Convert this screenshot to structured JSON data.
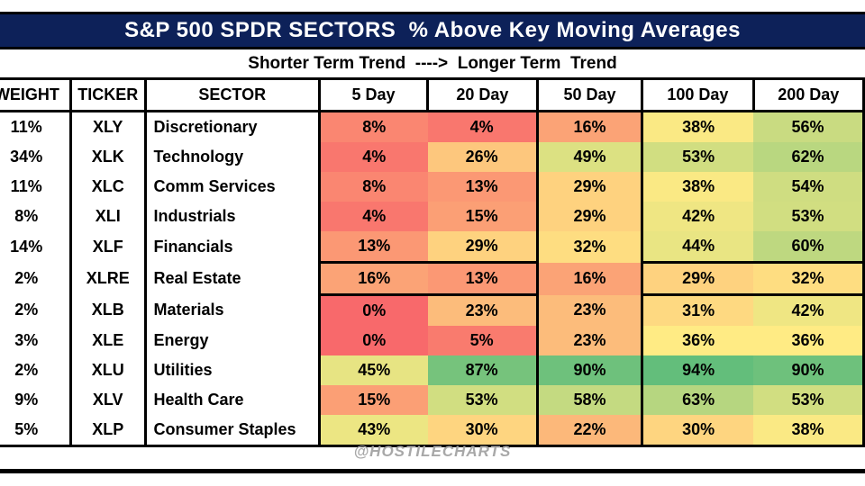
{
  "page": {
    "banner_color": "#0d2159",
    "banner_text_color": "#ffffff",
    "watermark": "@HOSTILECHARTS"
  },
  "chart_data": {
    "type": "heatmap",
    "title": "S&P 500 SPDR SECTORS  % Above Key Moving Averages",
    "subtitle": "Shorter Term Trend  ---->  Longer Term  Trend",
    "columns": [
      "WEIGHT",
      "TICKER",
      "SECTOR",
      "5 Day",
      "20 Day",
      "50 Day",
      "100 Day",
      "200 Day"
    ],
    "value_columns": [
      "5 Day",
      "20 Day",
      "50 Day",
      "100 Day",
      "200 Day"
    ],
    "unit": "%",
    "rows": [
      {
        "weight": "11%",
        "ticker": "XLY",
        "sector": "Discretionary",
        "values": [
          8,
          4,
          16,
          38,
          56
        ]
      },
      {
        "weight": "34%",
        "ticker": "XLK",
        "sector": "Technology",
        "values": [
          4,
          26,
          49,
          53,
          62
        ]
      },
      {
        "weight": "11%",
        "ticker": "XLC",
        "sector": "Comm Services",
        "values": [
          8,
          13,
          29,
          38,
          54
        ]
      },
      {
        "weight": "8%",
        "ticker": "XLI",
        "sector": "Industrials",
        "values": [
          4,
          15,
          29,
          42,
          53
        ]
      },
      {
        "weight": "14%",
        "ticker": "XLF",
        "sector": "Financials",
        "values": [
          13,
          29,
          32,
          44,
          60
        ]
      },
      {
        "weight": "2%",
        "ticker": "XLRE",
        "sector": "Real Estate",
        "values": [
          16,
          13,
          16,
          29,
          32
        ]
      },
      {
        "weight": "2%",
        "ticker": "XLB",
        "sector": "Materials",
        "values": [
          0,
          23,
          23,
          31,
          42
        ]
      },
      {
        "weight": "3%",
        "ticker": "XLE",
        "sector": "Energy",
        "values": [
          0,
          5,
          23,
          36,
          36
        ]
      },
      {
        "weight": "2%",
        "ticker": "XLU",
        "sector": "Utilities",
        "values": [
          45,
          87,
          90,
          94,
          90
        ]
      },
      {
        "weight": "9%",
        "ticker": "XLV",
        "sector": "Health Care",
        "values": [
          15,
          53,
          58,
          63,
          53
        ]
      },
      {
        "weight": "5%",
        "ticker": "XLP",
        "sector": "Consumer Staples",
        "values": [
          43,
          30,
          22,
          30,
          38
        ]
      }
    ],
    "color_scale": {
      "min_value": 0,
      "min_color": "#F8696B",
      "mid_value": 36,
      "mid_color": "#FFEB84",
      "max_value": 94,
      "max_color": "#63BE7B"
    },
    "group_row_breaks_after": [
      "XLF",
      "XLRE"
    ],
    "legend_position": "none",
    "footer": "@HOSTILECHARTS"
  }
}
